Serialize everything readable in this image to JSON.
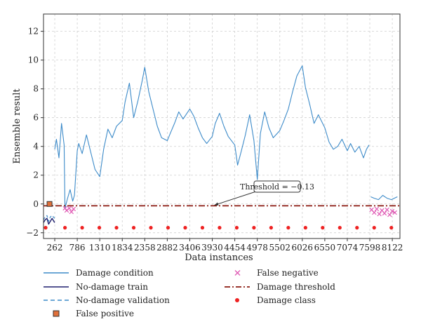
{
  "chart_data": {
    "type": "line",
    "xlabel": "Data instances",
    "ylabel": "Ensemble result",
    "xlim": [
      0,
      8300
    ],
    "ylim": [
      -2.4,
      13.2
    ],
    "grid": true,
    "x_ticks": [
      262,
      786,
      1310,
      1834,
      2358,
      2882,
      3406,
      3930,
      4454,
      4978,
      5502,
      6026,
      6550,
      7074,
      7598,
      8122
    ],
    "y_ticks": [
      -2,
      0,
      2,
      4,
      6,
      8,
      10,
      12
    ],
    "threshold_value": -0.13,
    "annotation": {
      "text": "Threshold = −0.13",
      "x": 3930,
      "y": -0.13
    },
    "legend_position": "below plot, two columns",
    "legend": [
      {
        "key": "damage",
        "label": "Damage condition",
        "color": "#3d8bc9",
        "style": "solid line"
      },
      {
        "key": "false_negative",
        "label": "False negative",
        "color": "#e05ab4",
        "style": "x marker"
      },
      {
        "key": "nd_train",
        "label": "No-damage train",
        "color": "#1f1f6e",
        "style": "solid line"
      },
      {
        "key": "threshold",
        "label": "Damage threshold",
        "color": "#8b1a10",
        "style": "dash-dot line"
      },
      {
        "key": "nd_val",
        "label": "No-damage validation",
        "color": "#3d8bc9",
        "style": "dashed line"
      },
      {
        "key": "damage_class",
        "label": "Damage class",
        "color": "#ee2222",
        "style": "dot marker"
      },
      {
        "key": "false_positive",
        "label": "False positive",
        "color": "#e0703a",
        "style": "square marker"
      }
    ],
    "series": [
      {
        "name": "Damage condition",
        "color": "#3d8bc9",
        "x": [
          262,
          300,
          360,
          420,
          480,
          500,
          560,
          620,
          680,
          720,
          786,
          820,
          900,
          1000,
          1100,
          1200,
          1310,
          1400,
          1500,
          1600,
          1700,
          1834,
          1900,
          2000,
          2100,
          2200,
          2300,
          2358,
          2450,
          2550,
          2650,
          2750,
          2882,
          2950,
          3050,
          3150,
          3250,
          3406,
          3500,
          3600,
          3700,
          3800,
          3930,
          4000,
          4100,
          4200,
          4300,
          4454,
          4520,
          4600,
          4700,
          4800,
          4900,
          4978,
          5050,
          5150,
          5250,
          5350,
          5502,
          5600,
          5700,
          5800,
          5900,
          6026,
          6100,
          6200,
          6300,
          6400,
          6550,
          6650,
          6750,
          6850,
          6950,
          7074,
          7150,
          7250,
          7350,
          7450,
          7520,
          7580
        ],
        "y": [
          3.8,
          4.5,
          3.2,
          5.6,
          4.1,
          -0.3,
          0.4,
          1.0,
          0.2,
          0.6,
          3.7,
          4.2,
          3.5,
          4.8,
          3.6,
          2.4,
          1.9,
          3.8,
          5.2,
          4.6,
          5.4,
          5.8,
          7.1,
          8.4,
          6.0,
          7.2,
          8.6,
          9.5,
          7.8,
          6.6,
          5.4,
          4.6,
          4.4,
          4.9,
          5.6,
          6.4,
          5.9,
          6.6,
          6.1,
          5.3,
          4.6,
          4.2,
          4.7,
          5.6,
          6.3,
          5.4,
          4.7,
          4.1,
          2.7,
          3.6,
          4.8,
          6.2,
          4.4,
          1.7,
          4.9,
          6.4,
          5.3,
          4.6,
          5.1,
          5.8,
          6.6,
          7.8,
          8.9,
          9.6,
          8.1,
          6.9,
          5.6,
          6.2,
          5.3,
          4.3,
          3.8,
          4.0,
          4.5,
          3.7,
          4.2,
          3.6,
          4.0,
          3.2,
          3.8,
          4.1
        ]
      },
      {
        "name": "Damage condition (end segment)",
        "color": "#3d8bc9",
        "x": [
          7620,
          7700,
          7800,
          7900,
          8000,
          8100,
          8240
        ],
        "y": [
          0.5,
          0.4,
          0.3,
          0.6,
          0.4,
          0.3,
          0.5
        ]
      },
      {
        "name": "No-damage train",
        "color": "#1f1f6e",
        "x": [
          0,
          40,
          80,
          120,
          160,
          200,
          260
        ],
        "y": [
          -1.3,
          -1.1,
          -1.0,
          -1.4,
          -1.2,
          -1.0,
          -1.3
        ]
      },
      {
        "name": "No-damage validation",
        "color": "#3d8bc9",
        "x": [
          0,
          40,
          80,
          120,
          160,
          200,
          260
        ],
        "y": [
          -1.1,
          -0.9,
          -0.8,
          -1.2,
          -0.9,
          -0.8,
          -1.0
        ]
      },
      {
        "name": "Damage threshold",
        "color": "#8b1a10",
        "x": [
          0,
          8300
        ],
        "y": [
          -0.13,
          -0.13
        ]
      }
    ],
    "false_positive_points": [
      {
        "x": 140,
        "y": 0.0
      }
    ],
    "false_negative_points": [
      {
        "x": 500,
        "y": -0.3
      },
      {
        "x": 540,
        "y": -0.45
      },
      {
        "x": 600,
        "y": -0.3
      },
      {
        "x": 650,
        "y": -0.55
      },
      {
        "x": 700,
        "y": -0.35
      },
      {
        "x": 7640,
        "y": -0.4
      },
      {
        "x": 7700,
        "y": -0.6
      },
      {
        "x": 7760,
        "y": -0.35
      },
      {
        "x": 7820,
        "y": -0.7
      },
      {
        "x": 7880,
        "y": -0.45
      },
      {
        "x": 7940,
        "y": -0.65
      },
      {
        "x": 8000,
        "y": -0.4
      },
      {
        "x": 8060,
        "y": -0.75
      },
      {
        "x": 8120,
        "y": -0.5
      },
      {
        "x": 8180,
        "y": -0.6
      }
    ],
    "damage_class_points": [
      {
        "x": 50,
        "y": -1.65
      },
      {
        "x": 500,
        "y": -1.65
      },
      {
        "x": 900,
        "y": -1.65
      },
      {
        "x": 1300,
        "y": -1.65
      },
      {
        "x": 1700,
        "y": -1.65
      },
      {
        "x": 2100,
        "y": -1.65
      },
      {
        "x": 2500,
        "y": -1.65
      },
      {
        "x": 2900,
        "y": -1.65
      },
      {
        "x": 3300,
        "y": -1.65
      },
      {
        "x": 3700,
        "y": -1.65
      },
      {
        "x": 4100,
        "y": -1.65
      },
      {
        "x": 4500,
        "y": -1.65
      },
      {
        "x": 4900,
        "y": -1.65
      },
      {
        "x": 5300,
        "y": -1.65
      },
      {
        "x": 5700,
        "y": -1.65
      },
      {
        "x": 6100,
        "y": -1.65
      },
      {
        "x": 6500,
        "y": -1.65
      },
      {
        "x": 6900,
        "y": -1.65
      },
      {
        "x": 7300,
        "y": -1.65
      },
      {
        "x": 7700,
        "y": -1.65
      },
      {
        "x": 8100,
        "y": -1.65
      }
    ]
  }
}
